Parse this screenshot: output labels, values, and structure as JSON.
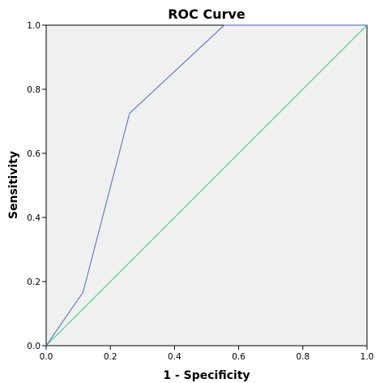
{
  "chart_data": {
    "type": "line",
    "title": "ROC Curve",
    "xlabel": "1 - Specificity",
    "ylabel": "Sensitivity",
    "xlim": [
      0,
      1
    ],
    "ylim": [
      0,
      1
    ],
    "grid": false,
    "x_ticks": [
      "0.0",
      "0.2",
      "0.4",
      "0.6",
      "0.8",
      "1.0"
    ],
    "y_ticks": [
      "0.0",
      "0.2",
      "0.4",
      "0.6",
      "0.8",
      "1.0"
    ],
    "series": [
      {
        "color": "#6a7fc0",
        "points": [
          {
            "x": 0.0,
            "y": 0.0
          },
          {
            "x": 0.115,
            "y": 0.167
          },
          {
            "x": 0.26,
            "y": 0.725
          },
          {
            "x": 0.555,
            "y": 1.0
          },
          {
            "x": 1.0,
            "y": 1.0
          }
        ]
      },
      {
        "color": "#4fd17a",
        "points": [
          {
            "x": 0.0,
            "y": 0.0
          },
          {
            "x": 1.0,
            "y": 1.0
          }
        ]
      }
    ],
    "colors": {
      "plot_background": "#f0f0f0",
      "axis": "#000000"
    }
  }
}
